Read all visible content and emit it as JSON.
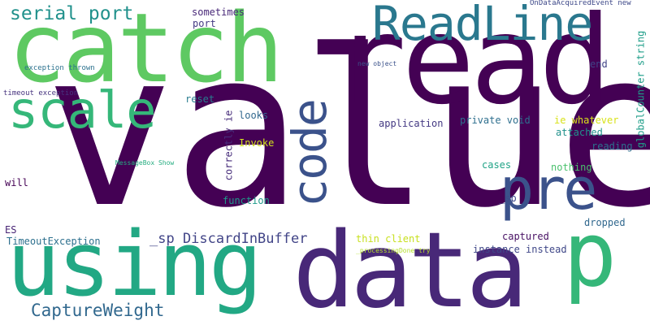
{
  "words": [
    {
      "text": "value",
      "color": "#440154"
    },
    {
      "text": "read",
      "color": "#440154"
    },
    {
      "text": "catch",
      "color": "#5ec962"
    },
    {
      "text": "using",
      "color": "#22a884"
    },
    {
      "text": "data",
      "color": "#482878"
    },
    {
      "text": "ReadLine",
      "color": "#2a788e"
    },
    {
      "text": "p",
      "color": "#35b779"
    },
    {
      "text": "pre",
      "color": "#3b528b"
    },
    {
      "text": "scale",
      "color": "#35b779"
    },
    {
      "text": "code",
      "color": "#3b528b"
    },
    {
      "text": "serial port",
      "color": "#21918c"
    },
    {
      "text": "CaptureWeight",
      "color": "#31688e"
    },
    {
      "text": "_sp DiscardInBuffer",
      "color": "#414487"
    },
    {
      "text": "sometimes",
      "color": "#482878"
    },
    {
      "text": "port",
      "color": "#443a83"
    },
    {
      "text": "OnDataAcquiredEvent new",
      "color": "#3e4989"
    },
    {
      "text": "globalCounter string",
      "color": "#1f9e89"
    },
    {
      "text": "end",
      "color": "#414487"
    },
    {
      "text": "new object",
      "color": "#3b528b"
    },
    {
      "text": "exception thrown",
      "color": "#2c728e"
    },
    {
      "text": "timeout exception",
      "color": "#46337e"
    },
    {
      "text": "reset",
      "color": "#287c8e"
    },
    {
      "text": "correctly ie",
      "color": "#472d7b"
    },
    {
      "text": "looks",
      "color": "#31688e"
    },
    {
      "text": "application",
      "color": "#443983"
    },
    {
      "text": "private void",
      "color": "#2e6f8e"
    },
    {
      "text": "ie whatever",
      "color": "#d8e219"
    },
    {
      "text": "attached",
      "color": "#21918c"
    },
    {
      "text": "reading",
      "color": "#2c728e"
    },
    {
      "text": "Invoke",
      "color": "#d0e11c"
    },
    {
      "text": "MessageBox Show",
      "color": "#26ad81"
    },
    {
      "text": "cases",
      "color": "#20a386"
    },
    {
      "text": "nothing",
      "color": "#4ac16d"
    },
    {
      "text": "will",
      "color": "#440154"
    },
    {
      "text": "function",
      "color": "#1f9a8a"
    },
    {
      "text": "_sp",
      "color": "#3e4a89"
    },
    {
      "text": "ES",
      "color": "#482475"
    },
    {
      "text": "TimeoutException",
      "color": "#2d708e"
    },
    {
      "text": "dropped",
      "color": "#31688e"
    },
    {
      "text": "thin client",
      "color": "#c8e020"
    },
    {
      "text": "captured",
      "color": "#471063"
    },
    {
      "text": "instance instead",
      "color": "#3f4788"
    },
    {
      "text": "_processingDone try",
      "color": "#b5de2b"
    }
  ]
}
